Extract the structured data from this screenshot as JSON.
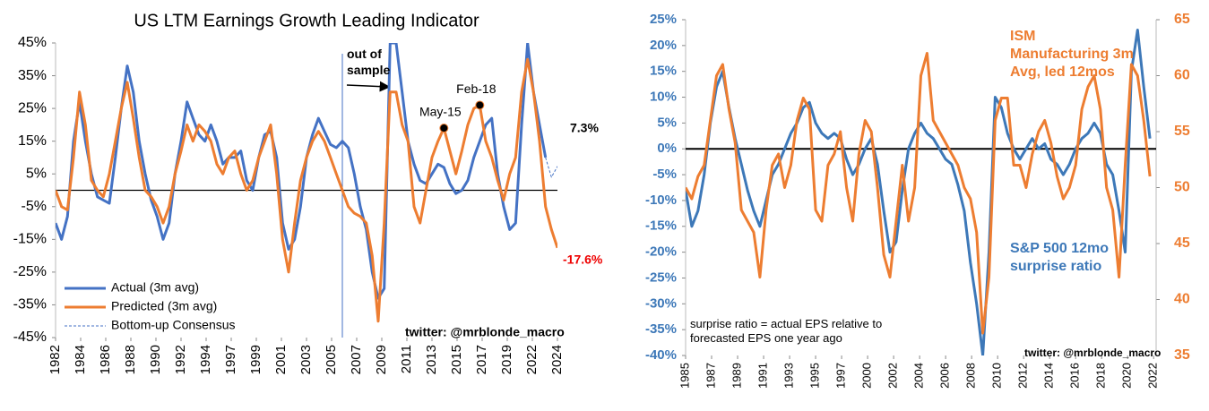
{
  "chart_data": [
    {
      "type": "line",
      "title": "US LTM Earnings Growth Leading Indicator",
      "x": [
        1982,
        1982.5,
        1983,
        1983.5,
        1984,
        1984.5,
        1985,
        1985.5,
        1986,
        1986.5,
        1987,
        1987.5,
        1988,
        1988.5,
        1989,
        1989.5,
        1990,
        1990.5,
        1991,
        1991.5,
        1992,
        1992.5,
        1993,
        1993.5,
        1994,
        1994.5,
        1995,
        1995.5,
        1996,
        1996.5,
        1997,
        1997.5,
        1998,
        1998.5,
        1999,
        1999.5,
        2000,
        2000.5,
        2001,
        2001.5,
        2002,
        2002.5,
        2003,
        2003.5,
        2004,
        2004.5,
        2005,
        2005.5,
        2006,
        2006.5,
        2007,
        2007.5,
        2008,
        2008.5,
        2009,
        2009.5,
        2010,
        2010.5,
        2011,
        2011.5,
        2012,
        2012.5,
        2013,
        2013.5,
        2014,
        2014.5,
        2015,
        2015.5,
        2016,
        2016.5,
        2017,
        2017.5,
        2018,
        2018.5,
        2019,
        2019.5,
        2020,
        2020.5,
        2021,
        2021.5,
        2022,
        2022.5,
        2023,
        2023.5,
        2024
      ],
      "series": [
        {
          "name": "Actual (3m avg)",
          "color": "#4472c4",
          "values": [
            -10,
            -15,
            -8,
            15,
            27,
            15,
            5,
            -2,
            -3,
            -4,
            10,
            25,
            38,
            30,
            15,
            5,
            -3,
            -8,
            -15,
            -10,
            5,
            15,
            27,
            22,
            17,
            15,
            20,
            15,
            8,
            10,
            10,
            12,
            3,
            0,
            10,
            17,
            18,
            10,
            -10,
            -18,
            -15,
            -5,
            10,
            17,
            22,
            18,
            14,
            13,
            15,
            13,
            5,
            -5,
            -12,
            -25,
            -33,
            -30,
            45,
            45,
            30,
            15,
            8,
            3,
            2,
            5,
            8,
            7,
            2,
            -1,
            0,
            3,
            10,
            15,
            20,
            22,
            5,
            -5,
            -12,
            -10,
            20,
            45,
            30,
            20,
            10,
            null,
            null
          ]
        },
        {
          "name": "Predicted (3m avg)",
          "color": "#ed7d31",
          "values": [
            0,
            -5,
            -6,
            10,
            30,
            20,
            3,
            0,
            -2,
            5,
            15,
            25,
            33,
            22,
            10,
            0,
            -2,
            -5,
            -10,
            -5,
            5,
            12,
            20,
            15,
            20,
            18,
            15,
            8,
            5,
            10,
            12,
            5,
            0,
            3,
            10,
            15,
            20,
            5,
            -15,
            -25,
            -10,
            3,
            10,
            15,
            18,
            15,
            10,
            5,
            0,
            -5,
            -7,
            -8,
            -10,
            -20,
            -40,
            -10,
            30,
            30,
            20,
            15,
            -5,
            -10,
            0,
            10,
            15,
            19,
            12,
            5,
            12,
            20,
            25,
            26,
            15,
            10,
            3,
            -3,
            5,
            10,
            30,
            40,
            30,
            15,
            -5,
            -12,
            -17.6
          ],
          "value_labels": {
            "84": "-17.6%"
          }
        },
        {
          "name": "Bottom-up Consensus",
          "color": "#4472c4",
          "dashed": true,
          "x": [
            2023,
            2023.5,
            2024
          ],
          "values": [
            10,
            4,
            7.3
          ],
          "value_labels": {
            "2": "7.3%"
          }
        }
      ],
      "xlim": [
        1982,
        2024
      ],
      "xticks": [
        {
          "value": 1982,
          "label": "1982"
        },
        {
          "value": 1984.1,
          "label": "1984"
        },
        {
          "value": 1986.2,
          "label": "1986"
        },
        {
          "value": 1988.3,
          "label": "1988"
        },
        {
          "value": 1990.4,
          "label": "1990"
        },
        {
          "value": 1992.5,
          "label": "1992"
        },
        {
          "value": 1994.6,
          "label": "1994"
        },
        {
          "value": 1996.7,
          "label": "1997"
        },
        {
          "value": 1998.8,
          "label": "1999"
        },
        {
          "value": 2000.9,
          "label": "2001"
        },
        {
          "value": 2003,
          "label": "2003"
        },
        {
          "value": 2005.1,
          "label": "2005"
        },
        {
          "value": 2007.2,
          "label": "2007"
        },
        {
          "value": 2009.3,
          "label": "2009"
        },
        {
          "value": 2011.4,
          "label": "2011"
        },
        {
          "value": 2013.5,
          "label": "2013"
        },
        {
          "value": 2015.6,
          "label": "2015"
        },
        {
          "value": 2017.7,
          "label": "2017"
        },
        {
          "value": 2019.8,
          "label": "2019"
        },
        {
          "value": 2021.9,
          "label": "2022"
        },
        {
          "value": 2024,
          "label": "2024"
        }
      ],
      "ylim": [
        -45,
        45
      ],
      "yticks": [
        {
          "value": -45,
          "label": "-45%"
        },
        {
          "value": -35,
          "label": "-35%"
        },
        {
          "value": -25,
          "label": "-25%"
        },
        {
          "value": -15,
          "label": "-15%"
        },
        {
          "value": -5,
          "label": "-5%"
        },
        {
          "value": 5,
          "label": "5%"
        },
        {
          "value": 15,
          "label": "15%"
        },
        {
          "value": 25,
          "label": "25%"
        },
        {
          "value": 35,
          "label": "35%"
        },
        {
          "value": 45,
          "label": "45%"
        }
      ],
      "legend": "lower left",
      "vline": {
        "x": 2006,
        "text": "out of sample"
      },
      "points": [
        {
          "x": 2014.5,
          "y": 19,
          "label": "May-15"
        },
        {
          "x": 2017.5,
          "y": 26,
          "label": "Feb-18"
        }
      ],
      "source": "twitter: @mrblonde_macro"
    },
    {
      "type": "line",
      "x": [
        1985,
        1985.5,
        1986,
        1986.5,
        1987,
        1987.5,
        1988,
        1988.5,
        1989,
        1989.5,
        1990,
        1990.5,
        1991,
        1991.5,
        1992,
        1992.5,
        1993,
        1993.5,
        1994,
        1994.5,
        1995,
        1995.5,
        1996,
        1996.5,
        1997,
        1997.5,
        1998,
        1998.5,
        1999,
        1999.5,
        2000,
        2000.5,
        2001,
        2001.5,
        2002,
        2002.5,
        2003,
        2003.5,
        2004,
        2004.5,
        2005,
        2005.5,
        2006,
        2006.5,
        2007,
        2007.5,
        2008,
        2008.5,
        2009,
        2009.5,
        2010,
        2010.5,
        2011,
        2011.5,
        2012,
        2012.5,
        2013,
        2013.5,
        2014,
        2014.5,
        2015,
        2015.5,
        2016,
        2016.5,
        2017,
        2017.5,
        2018,
        2018.5,
        2019,
        2019.5,
        2020,
        2020.5,
        2021,
        2021.5,
        2022,
        2022.5
      ],
      "series": [
        {
          "name": "S&P 500 12mo surprise ratio",
          "color": "#3d78b8",
          "values": [
            -8,
            -15,
            -12,
            -5,
            5,
            12,
            15,
            8,
            2,
            -3,
            -8,
            -12,
            -15,
            -10,
            -5,
            -3,
            0,
            3,
            5,
            8,
            9,
            5,
            3,
            2,
            3,
            2,
            -2,
            -5,
            -3,
            0,
            2,
            -3,
            -12,
            -20,
            -18,
            -8,
            0,
            3,
            5,
            3,
            2,
            0,
            -2,
            -3,
            -7,
            -12,
            -22,
            -30,
            -40,
            -20,
            10,
            8,
            3,
            0,
            -2,
            0,
            2,
            0,
            1,
            -2,
            -3,
            -5,
            -3,
            0,
            2,
            3,
            5,
            3,
            -3,
            -5,
            -12,
            -20,
            15,
            23,
            12,
            2
          ]
        },
        {
          "name": "ISM Manufacturing 3m Avg, led 12mos",
          "color": "#ed7d31",
          "axis": "y2",
          "values": [
            50,
            49,
            51,
            52,
            56,
            60,
            61,
            57,
            54,
            48,
            47,
            46,
            42,
            48,
            52,
            53,
            50,
            52,
            56,
            58,
            57,
            48,
            47,
            52,
            53,
            55,
            50,
            47,
            53,
            56,
            55,
            50,
            44,
            42,
            47,
            52,
            47,
            50,
            60,
            62,
            56,
            55,
            54,
            53,
            52,
            50,
            49,
            46,
            37,
            42,
            56,
            58,
            58,
            52,
            52,
            50,
            53,
            55,
            56,
            54,
            51,
            49,
            50,
            52,
            57,
            59,
            60,
            57,
            50,
            48,
            42,
            52,
            61,
            60,
            56,
            51
          ]
        }
      ],
      "xlim": [
        1985,
        2023
      ],
      "xticks": [
        {
          "value": 1985,
          "label": "1985"
        },
        {
          "value": 1987.1,
          "label": "1987"
        },
        {
          "value": 1989.2,
          "label": "1989"
        },
        {
          "value": 1991.3,
          "label": "1991"
        },
        {
          "value": 1993.4,
          "label": "1993"
        },
        {
          "value": 1995.5,
          "label": "1995"
        },
        {
          "value": 1997.6,
          "label": "1997"
        },
        {
          "value": 1999.7,
          "label": "2000"
        },
        {
          "value": 2001.8,
          "label": "2002"
        },
        {
          "value": 2003.9,
          "label": "2004"
        },
        {
          "value": 2006,
          "label": "2006"
        },
        {
          "value": 2008.1,
          "label": "2008"
        },
        {
          "value": 2010.2,
          "label": "2010"
        },
        {
          "value": 2012.3,
          "label": "2012"
        },
        {
          "value": 2014.4,
          "label": "2014"
        },
        {
          "value": 2016.5,
          "label": "2016"
        },
        {
          "value": 2018.6,
          "label": "2018"
        },
        {
          "value": 2020.7,
          "label": "2020"
        },
        {
          "value": 2022.8,
          "label": "2022"
        }
      ],
      "ylim": [
        -40,
        25
      ],
      "yticks": [
        {
          "value": -40,
          "label": "-40%"
        },
        {
          "value": -35,
          "label": "-35%"
        },
        {
          "value": -30,
          "label": "-30%"
        },
        {
          "value": -25,
          "label": "-25%"
        },
        {
          "value": -20,
          "label": "-20%"
        },
        {
          "value": -15,
          "label": "-15%"
        },
        {
          "value": -10,
          "label": "-10%"
        },
        {
          "value": -5,
          "label": "-5%"
        },
        {
          "value": 0,
          "label": "0%"
        },
        {
          "value": 5,
          "label": "5%"
        },
        {
          "value": 10,
          "label": "10%"
        },
        {
          "value": 15,
          "label": "15%"
        },
        {
          "value": 20,
          "label": "20%"
        },
        {
          "value": 25,
          "label": "25%"
        }
      ],
      "y2lim": [
        35,
        65
      ],
      "y2ticks": [
        35,
        40,
        45,
        50,
        55,
        60,
        65
      ],
      "note": "surprise ratio = actual EPS relative to forecasted EPS one year ago",
      "source": "twitter: @mrblonde_macro"
    }
  ]
}
